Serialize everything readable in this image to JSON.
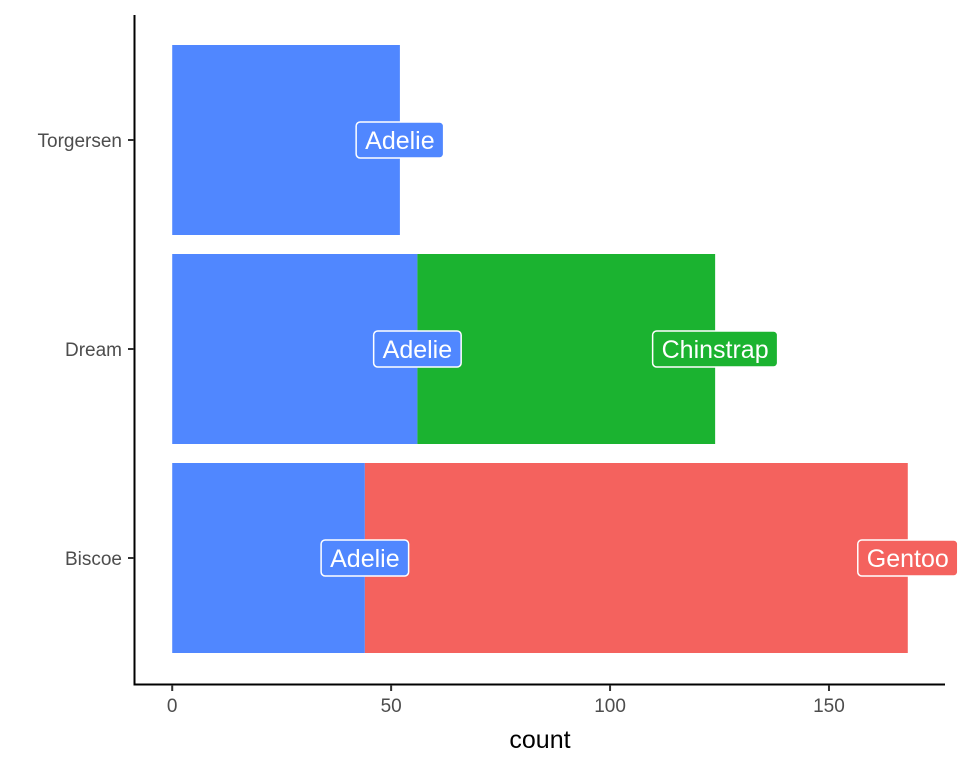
{
  "chart_data": {
    "type": "bar",
    "orientation": "horizontal",
    "stacked": true,
    "title": "",
    "xlabel": "count",
    "ylabel": "",
    "categories": [
      "Biscoe",
      "Dream",
      "Torgersen"
    ],
    "xlim": [
      -8.5,
      176.5
    ],
    "xticks": [
      0,
      50,
      100,
      150
    ],
    "series": [
      {
        "name": "Adelie",
        "color": "#5087FF",
        "values": [
          44,
          56,
          52
        ]
      },
      {
        "name": "Gentoo",
        "color": "#F4625E",
        "values": [
          124,
          0,
          0
        ]
      },
      {
        "name": "Chinstrap",
        "color": "#1BB330",
        "values": [
          0,
          68,
          0
        ]
      }
    ],
    "labels_on_segments": true,
    "legend": "none",
    "grid": false
  }
}
